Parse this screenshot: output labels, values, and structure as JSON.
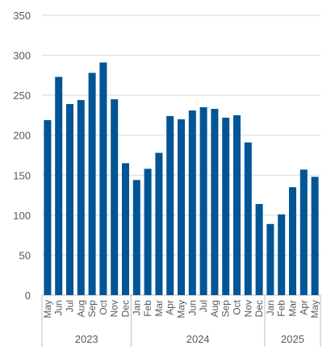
{
  "chart_data": {
    "type": "bar",
    "title": "",
    "xlabel": "",
    "ylabel": "",
    "ylim": [
      0,
      350
    ],
    "yticks": [
      0,
      50,
      100,
      150,
      200,
      250,
      300,
      350
    ],
    "grid": true,
    "bar_color": "#005596",
    "categories": [
      "May",
      "Jun",
      "Jul",
      "Aug",
      "Sep",
      "Oct",
      "Nov",
      "Dec",
      "Jan",
      "Feb",
      "Mar",
      "Apr",
      "May",
      "Jun",
      "Jul",
      "Aug",
      "Sep",
      "Oct",
      "Nov",
      "Dec",
      "Jan",
      "Feb",
      "Mar",
      "Apr",
      "May"
    ],
    "values": [
      219,
      273,
      239,
      244,
      278,
      291,
      245,
      165,
      144,
      158,
      178,
      224,
      220,
      231,
      235,
      233,
      222,
      225,
      191,
      114,
      89,
      101,
      135,
      157,
      148
    ],
    "year_groups": [
      {
        "label": "2023",
        "count": 8
      },
      {
        "label": "2024",
        "count": 12
      },
      {
        "label": "2025",
        "count": 5
      }
    ]
  }
}
